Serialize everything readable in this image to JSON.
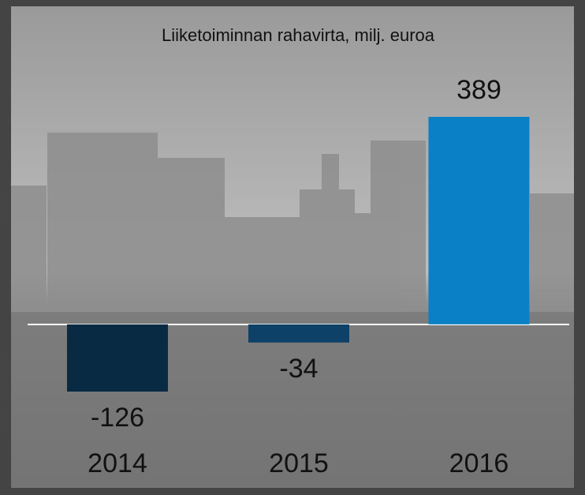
{
  "chart_data": {
    "type": "bar",
    "title": "Liiketoiminnan rahavirta, milj. euroa",
    "categories": [
      "2014",
      "2015",
      "2016"
    ],
    "values": [
      -126,
      -34,
      389
    ],
    "colors": [
      "#082a42",
      "#0d4168",
      "#0a80c6"
    ]
  }
}
